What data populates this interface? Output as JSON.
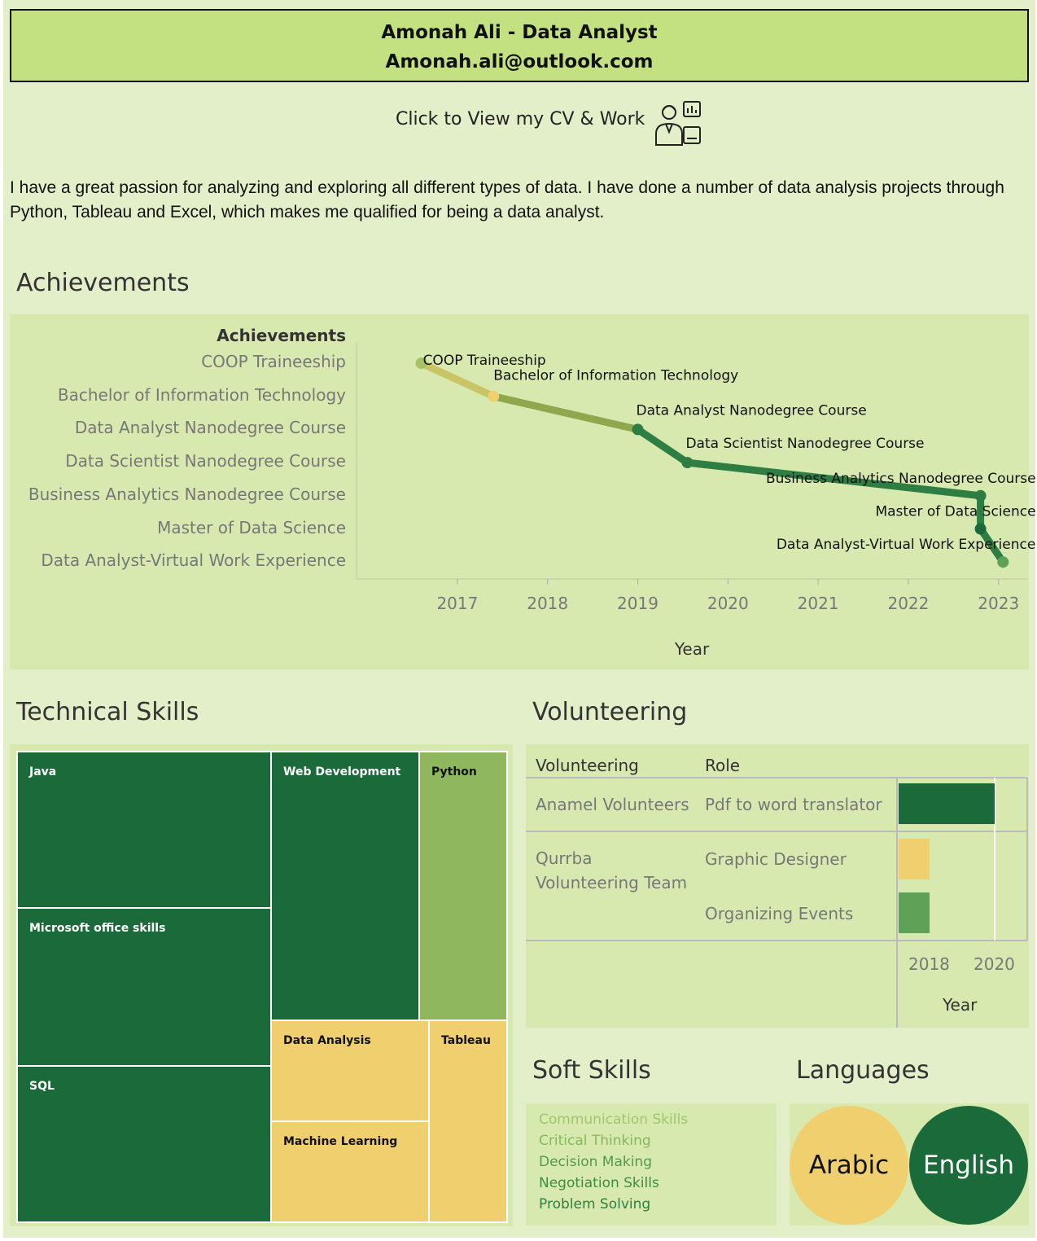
{
  "header": {
    "name_title": "Amonah Ali - Data Analyst",
    "email": "Amonah.ali@outlook.com"
  },
  "cv_link": {
    "label": "Click to View my CV & Work",
    "icon": "analyst-person-icon"
  },
  "intro": "I have a great passion for analyzing and exploring all different types of data. I have done a number of data analysis projects through Python, Tableau and Excel, which makes me qualified for being a data analyst.",
  "sections": {
    "achievements": "Achievements",
    "technical_skills": "Technical Skills",
    "volunteering": "Volunteering",
    "soft_skills": "Soft Skills",
    "languages": "Languages"
  },
  "colors": {
    "dark_green": "#1b6b3a",
    "mid_green": "#5fa257",
    "light_green": "#8fb85e",
    "yellow": "#f0cf6e",
    "olive": "#a9c064"
  },
  "chart_data": [
    {
      "type": "line",
      "title": "",
      "ylabel": "Achievements",
      "xlabel": "Year",
      "categories": [
        "COOP Traineeship",
        "Bachelor of Information Technology",
        "Data Analyst Nanodegree Course",
        "Data Scientist Nanodegree Course",
        "Business Analytics Nanodegree Course",
        "Master of Data Science",
        "Data Analyst-Virtual Work Experience"
      ],
      "x": [
        2016.6,
        2017.4,
        2019.0,
        2019.55,
        2022.8,
        2022.8,
        2023.05
      ],
      "x_ticks": [
        "2017",
        "2018",
        "2019",
        "2020",
        "2021",
        "2022",
        "2023"
      ],
      "xlim": [
        2015.9,
        2023.3
      ]
    },
    {
      "type": "heatmap",
      "title": "",
      "categories": [
        "Java",
        "Microsoft office skills",
        "SQL",
        "Web Development",
        "Python",
        "Data Analysis",
        "Machine Learning",
        "Tableau"
      ],
      "levels": [
        "dark",
        "dark",
        "dark",
        "dark",
        "light",
        "yellow",
        "yellow",
        "yellow"
      ]
    },
    {
      "type": "bar",
      "title": "",
      "columns": [
        "Volunteering",
        "Role"
      ],
      "rows": [
        {
          "org": "Anamel Volunteers",
          "role": "Pdf to word translator",
          "start": 2018,
          "end": 2020
        },
        {
          "org": "Qurrba Volunteering Team",
          "role": "Graphic Designer",
          "start": 2018,
          "end": 2018
        },
        {
          "org": "",
          "role": "Organizing Events",
          "start": 2018,
          "end": 2018
        }
      ],
      "xlabel": "Year",
      "x_ticks": [
        "2018",
        "2020"
      ]
    }
  ],
  "volunteering": {
    "col1": "Volunteering",
    "col2": "Role",
    "org1": "Anamel Volunteers",
    "role1": "Pdf to word translator",
    "org2a": "Qurrba",
    "org2b": "Volunteering Team",
    "role2": "Graphic Designer",
    "role3": "Organizing Events",
    "tick1": "2018",
    "tick2": "2020",
    "xlabel": "Year"
  },
  "soft_skills": [
    "Communication Skills",
    "Critical Thinking",
    "Decision Making",
    "Negotiation Skills",
    "Problem Solving"
  ],
  "languages": [
    "Arabic",
    "English"
  ]
}
